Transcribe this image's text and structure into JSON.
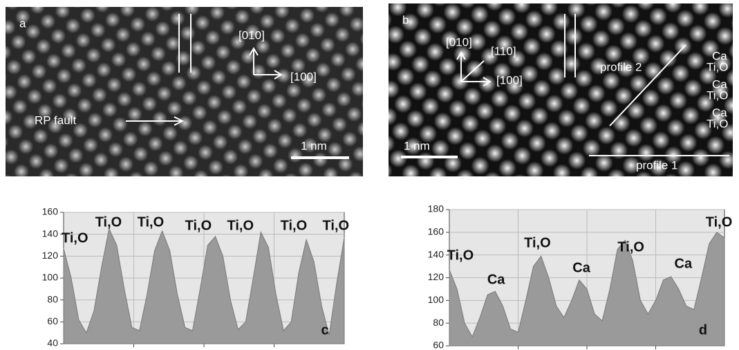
{
  "panels": [
    {
      "label": "a",
      "texts": [
        "[010]",
        "[100]",
        "RP fault",
        "1 nm"
      ]
    },
    {
      "label": "b",
      "texts": [
        "[010]",
        "[110]",
        "[100]",
        "profile 2",
        "Ca",
        "Ti,O",
        "Ca",
        "Ti,O",
        "Ca",
        "Ti,O",
        "1 nm",
        "profile 1"
      ]
    }
  ],
  "chart_data": [
    {
      "type": "area",
      "label": "c",
      "color": "#9a9a9a",
      "grid": true,
      "ylim": [
        40,
        160
      ],
      "yticks": [
        40,
        60,
        80,
        100,
        120,
        140,
        160
      ],
      "annotations": [
        "Ti,O",
        "Ti,O",
        "Ti,O",
        "Ti,O",
        "Ti,O",
        "Ti,O",
        "Ti,O"
      ],
      "values": [
        127,
        100,
        62,
        50,
        70,
        110,
        145,
        130,
        90,
        55,
        52,
        85,
        125,
        143,
        125,
        85,
        55,
        52,
        90,
        130,
        138,
        120,
        80,
        53,
        60,
        100,
        142,
        128,
        85,
        52,
        60,
        105,
        135,
        115,
        75,
        48,
        95,
        137
      ]
    },
    {
      "type": "area",
      "label": "d",
      "color": "#9a9a9a",
      "grid": true,
      "ylim": [
        60,
        180
      ],
      "yticks": [
        60,
        80,
        100,
        120,
        140,
        160,
        180
      ],
      "annotations": [
        "Ti,O",
        "Ca",
        "Ti,O",
        "Ca",
        "Ti,O",
        "Ca",
        "Ti,O"
      ],
      "values": [
        127,
        110,
        80,
        68,
        85,
        105,
        108,
        95,
        75,
        72,
        100,
        130,
        139,
        120,
        95,
        85,
        100,
        118,
        110,
        88,
        82,
        110,
        145,
        153,
        135,
        100,
        88,
        100,
        118,
        121,
        110,
        95,
        92,
        120,
        150,
        160,
        155
      ]
    }
  ]
}
